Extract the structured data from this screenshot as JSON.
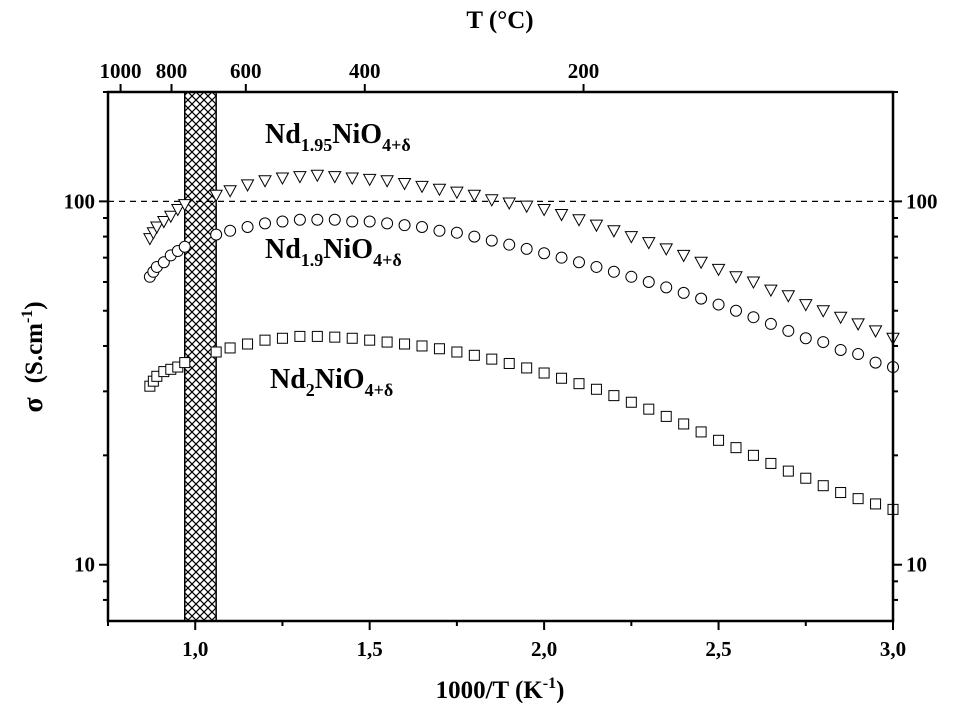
{
  "chart_data": {
    "type": "scatter",
    "title": "",
    "xlabel": {
      "main": "1000/T (K",
      "sup": "-1",
      "end": ")"
    },
    "ylabel": {
      "symbol": "σ",
      "unit_main": "(S.cm",
      "unit_sup": "-1",
      "unit_end": ")"
    },
    "top_xlabel": "T (°C)",
    "xlim": [
      0.75,
      3.0
    ],
    "ylim": [
      7,
      200
    ],
    "y_scale": "log",
    "x_ticks": [
      1.0,
      1.5,
      2.0,
      2.5,
      3.0
    ],
    "x_tick_labels": [
      "1,0",
      "1,5",
      "2,0",
      "2,5",
      "3,0"
    ],
    "y_ticks": [
      10,
      100
    ],
    "y_tick_labels": [
      "10",
      "100"
    ],
    "top_ticks": [
      {
        "label": "1000",
        "x": 0.786
      },
      {
        "label": "800",
        "x": 0.932
      },
      {
        "label": "600",
        "x": 1.145
      },
      {
        "label": "400",
        "x": 1.486
      },
      {
        "label": "200",
        "x": 2.113
      }
    ],
    "reference_line": {
      "y": 100,
      "style": "dashed"
    },
    "shaded_band": {
      "x": [
        0.97,
        1.06
      ],
      "pattern": "crosshatch"
    },
    "series": [
      {
        "name": {
          "base": "Nd",
          "sub1": "1.95",
          "mid": "NiO",
          "sub2": "4+δ"
        },
        "marker": "triangle-down",
        "points": [
          [
            0.87,
            79
          ],
          [
            0.88,
            82
          ],
          [
            0.89,
            85
          ],
          [
            0.91,
            88
          ],
          [
            0.93,
            91
          ],
          [
            0.95,
            95
          ],
          [
            0.97,
            98
          ],
          [
            1.06,
            104
          ],
          [
            1.1,
            107
          ],
          [
            1.15,
            111
          ],
          [
            1.2,
            114
          ],
          [
            1.25,
            116
          ],
          [
            1.3,
            117
          ],
          [
            1.35,
            118
          ],
          [
            1.4,
            117
          ],
          [
            1.45,
            116
          ],
          [
            1.5,
            115
          ],
          [
            1.55,
            114
          ],
          [
            1.6,
            112
          ],
          [
            1.65,
            110
          ],
          [
            1.7,
            108
          ],
          [
            1.75,
            106
          ],
          [
            1.8,
            104
          ],
          [
            1.85,
            101
          ],
          [
            1.9,
            99
          ],
          [
            1.95,
            97
          ],
          [
            2.0,
            95
          ],
          [
            2.05,
            92
          ],
          [
            2.1,
            89
          ],
          [
            2.15,
            86
          ],
          [
            2.2,
            83
          ],
          [
            2.25,
            80
          ],
          [
            2.3,
            77
          ],
          [
            2.35,
            74
          ],
          [
            2.4,
            71
          ],
          [
            2.45,
            68
          ],
          [
            2.5,
            65
          ],
          [
            2.55,
            62
          ],
          [
            2.6,
            60
          ],
          [
            2.65,
            57
          ],
          [
            2.7,
            55
          ],
          [
            2.75,
            52
          ],
          [
            2.8,
            50
          ],
          [
            2.85,
            48
          ],
          [
            2.9,
            46
          ],
          [
            2.95,
            44
          ],
          [
            3.0,
            42
          ]
        ]
      },
      {
        "name": {
          "base": "Nd",
          "sub1": "1.9",
          "mid": "NiO",
          "sub2": "4+δ"
        },
        "marker": "circle",
        "points": [
          [
            0.87,
            62
          ],
          [
            0.88,
            64
          ],
          [
            0.89,
            66
          ],
          [
            0.91,
            68
          ],
          [
            0.93,
            71
          ],
          [
            0.95,
            73
          ],
          [
            0.97,
            75
          ],
          [
            1.06,
            81
          ],
          [
            1.1,
            83
          ],
          [
            1.15,
            85
          ],
          [
            1.2,
            87
          ],
          [
            1.25,
            88
          ],
          [
            1.3,
            89
          ],
          [
            1.35,
            89
          ],
          [
            1.4,
            89
          ],
          [
            1.45,
            88
          ],
          [
            1.5,
            88
          ],
          [
            1.55,
            87
          ],
          [
            1.6,
            86
          ],
          [
            1.65,
            85
          ],
          [
            1.7,
            83
          ],
          [
            1.75,
            82
          ],
          [
            1.8,
            80
          ],
          [
            1.85,
            78
          ],
          [
            1.9,
            76
          ],
          [
            1.95,
            74
          ],
          [
            2.0,
            72
          ],
          [
            2.05,
            70
          ],
          [
            2.1,
            68
          ],
          [
            2.15,
            66
          ],
          [
            2.2,
            64
          ],
          [
            2.25,
            62
          ],
          [
            2.3,
            60
          ],
          [
            2.35,
            58
          ],
          [
            2.4,
            56
          ],
          [
            2.45,
            54
          ],
          [
            2.5,
            52
          ],
          [
            2.55,
            50
          ],
          [
            2.6,
            48
          ],
          [
            2.65,
            46
          ],
          [
            2.7,
            44
          ],
          [
            2.75,
            42
          ],
          [
            2.8,
            41
          ],
          [
            2.85,
            39
          ],
          [
            2.9,
            38
          ],
          [
            2.95,
            36
          ],
          [
            3.0,
            35
          ]
        ]
      },
      {
        "name": {
          "base": "Nd",
          "sub1": "2",
          "mid": "NiO",
          "sub2": "4+δ"
        },
        "marker": "square",
        "points": [
          [
            0.87,
            31
          ],
          [
            0.88,
            32
          ],
          [
            0.89,
            33
          ],
          [
            0.91,
            34
          ],
          [
            0.93,
            34.5
          ],
          [
            0.95,
            35
          ],
          [
            0.97,
            36
          ],
          [
            1.06,
            38.5
          ],
          [
            1.1,
            39.5
          ],
          [
            1.15,
            40.5
          ],
          [
            1.2,
            41.5
          ],
          [
            1.25,
            42
          ],
          [
            1.3,
            42.5
          ],
          [
            1.35,
            42.5
          ],
          [
            1.4,
            42.3
          ],
          [
            1.45,
            42
          ],
          [
            1.5,
            41.5
          ],
          [
            1.55,
            41
          ],
          [
            1.6,
            40.5
          ],
          [
            1.65,
            40
          ],
          [
            1.7,
            39.3
          ],
          [
            1.75,
            38.5
          ],
          [
            1.8,
            37.7
          ],
          [
            1.85,
            36.8
          ],
          [
            1.9,
            35.8
          ],
          [
            1.95,
            34.8
          ],
          [
            2.0,
            33.7
          ],
          [
            2.05,
            32.6
          ],
          [
            2.1,
            31.5
          ],
          [
            2.15,
            30.4
          ],
          [
            2.2,
            29.2
          ],
          [
            2.25,
            28
          ],
          [
            2.3,
            26.8
          ],
          [
            2.35,
            25.6
          ],
          [
            2.4,
            24.4
          ],
          [
            2.45,
            23.2
          ],
          [
            2.5,
            22
          ],
          [
            2.55,
            21
          ],
          [
            2.6,
            20
          ],
          [
            2.65,
            19
          ],
          [
            2.7,
            18.1
          ],
          [
            2.75,
            17.3
          ],
          [
            2.8,
            16.5
          ],
          [
            2.85,
            15.8
          ],
          [
            2.9,
            15.2
          ],
          [
            2.95,
            14.7
          ],
          [
            3.0,
            14.2
          ]
        ]
      }
    ]
  }
}
